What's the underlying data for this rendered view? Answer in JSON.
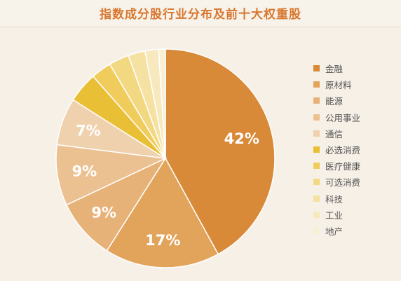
{
  "chart_data": {
    "type": "pie",
    "title": "指数成分股行业分布及前十大权重股",
    "categories": [
      "金融",
      "原材料",
      "能源",
      "公用事业",
      "通信",
      "必选消费",
      "医疗健康",
      "可选消费",
      "科技",
      "工业",
      "地产"
    ],
    "values": [
      42,
      17,
      9,
      9,
      7,
      4.5,
      3,
      3,
      2.5,
      2,
      1
    ],
    "labels": [
      "42%",
      "17%",
      "9%",
      "9%",
      "7%",
      "",
      "",
      "",
      "",
      "",
      ""
    ],
    "colors": [
      "#d98a38",
      "#e2a45b",
      "#e7b277",
      "#ecc191",
      "#f0d1ae",
      "#e9bf35",
      "#f0cc5c",
      "#f3d882",
      "#f5e2a2",
      "#f7e9bd",
      "#f8f0d5"
    ],
    "legend_position": "right"
  }
}
